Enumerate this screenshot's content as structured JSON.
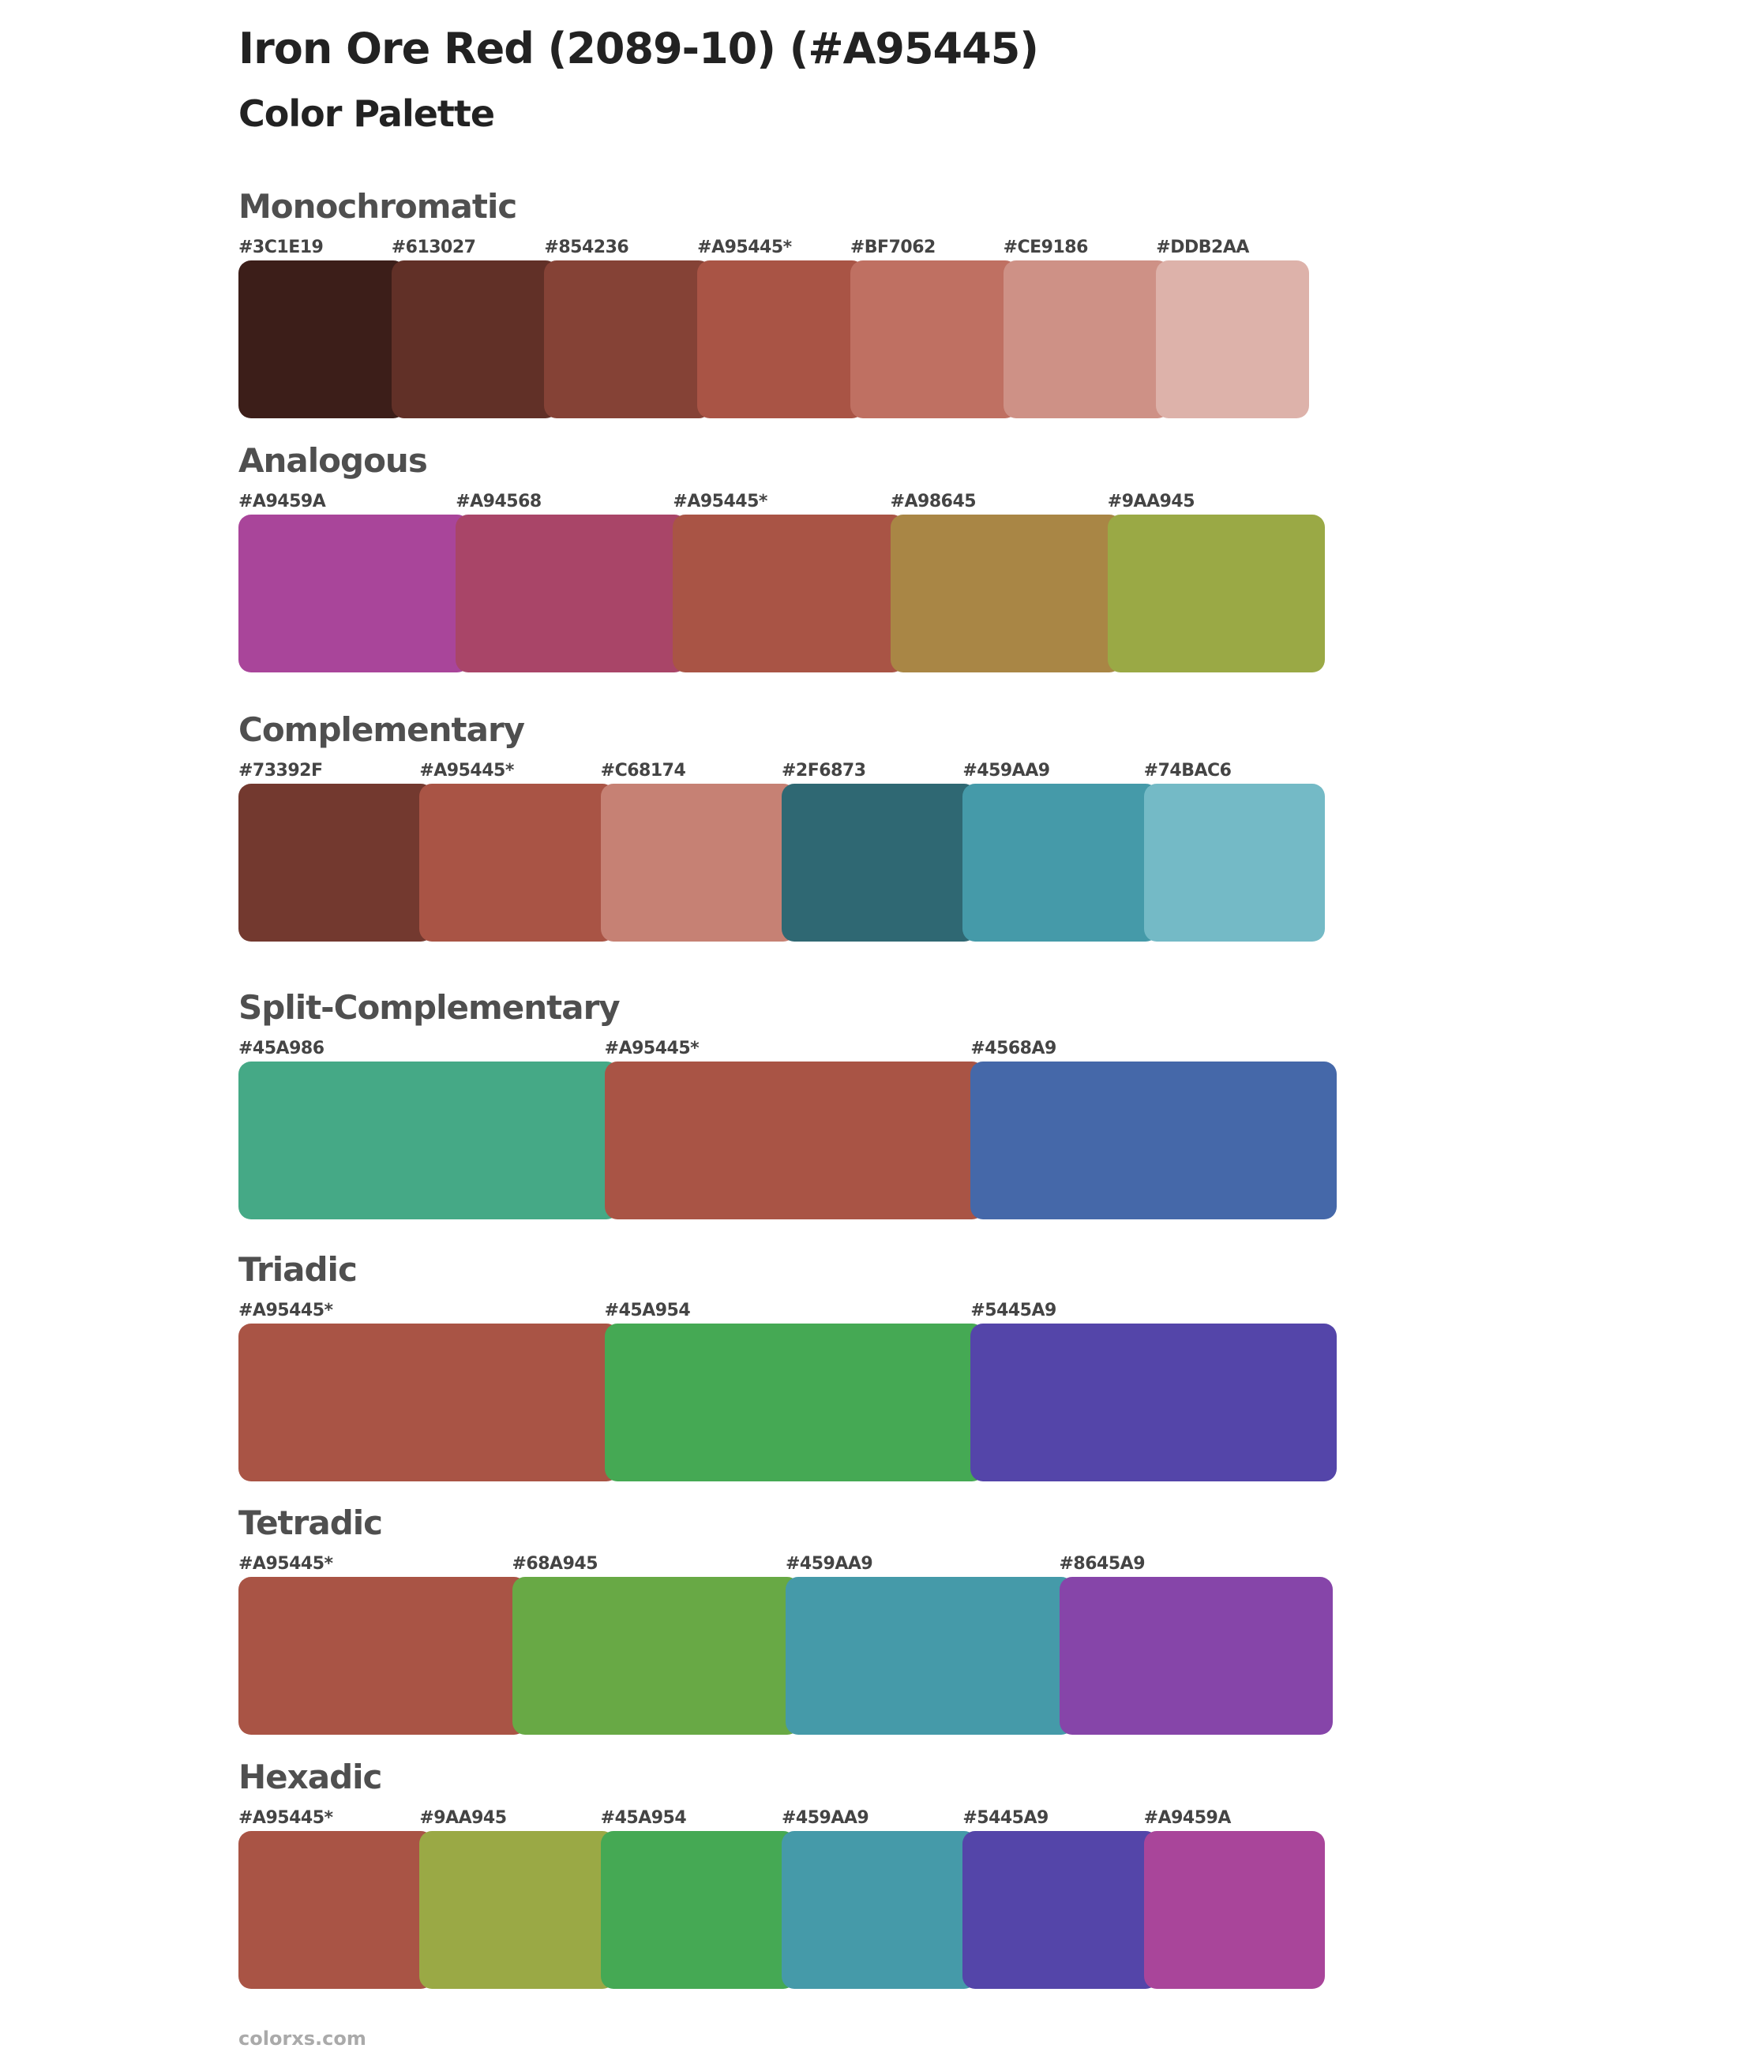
{
  "title": "Iron Ore Red (2089-10) (#A95445)",
  "subtitle": "Color Palette",
  "sections": [
    {
      "name": "Monochromatic",
      "colors": [
        {
          "label": "#3C1E19",
          "hex": "#3C1E19"
        },
        {
          "label": "#613027",
          "hex": "#613027"
        },
        {
          "label": "#854236",
          "hex": "#854236"
        },
        {
          "label": "#A95445*",
          "hex": "#A95445"
        },
        {
          "label": "#BF7062",
          "hex": "#BF7062"
        },
        {
          "label": "#CE9186",
          "hex": "#CE9186"
        },
        {
          "label": "#DDB2AA",
          "hex": "#DDB2AA"
        }
      ]
    },
    {
      "name": "Analogous",
      "colors": [
        {
          "label": "#A9459A",
          "hex": "#A9459A"
        },
        {
          "label": "#A94568",
          "hex": "#A94568"
        },
        {
          "label": "#A95445*",
          "hex": "#A95445"
        },
        {
          "label": "#A98645",
          "hex": "#A98645"
        },
        {
          "label": "#9AA945",
          "hex": "#9AA945"
        }
      ]
    },
    {
      "name": "Complementary",
      "colors": [
        {
          "label": "#73392F",
          "hex": "#73392F"
        },
        {
          "label": "#A95445*",
          "hex": "#A95445"
        },
        {
          "label": "#C68174",
          "hex": "#C68174"
        },
        {
          "label": "#2F6873",
          "hex": "#2F6873"
        },
        {
          "label": "#459AA9",
          "hex": "#459AA9"
        },
        {
          "label": "#74BAC6",
          "hex": "#74BAC6"
        }
      ]
    },
    {
      "name": "Split-Complementary",
      "colors": [
        {
          "label": "#45A986",
          "hex": "#45A986"
        },
        {
          "label": "#A95445*",
          "hex": "#A95445"
        },
        {
          "label": "#4568A9",
          "hex": "#4568A9"
        }
      ]
    },
    {
      "name": "Triadic",
      "colors": [
        {
          "label": "#A95445*",
          "hex": "#A95445"
        },
        {
          "label": "#45A954",
          "hex": "#45A954"
        },
        {
          "label": "#5445A9",
          "hex": "#5445A9"
        }
      ]
    },
    {
      "name": "Tetradic",
      "colors": [
        {
          "label": "#A95445*",
          "hex": "#A95445"
        },
        {
          "label": "#68A945",
          "hex": "#68A945"
        },
        {
          "label": "#459AA9",
          "hex": "#459AA9"
        },
        {
          "label": "#8645A9",
          "hex": "#8645A9"
        }
      ]
    },
    {
      "name": "Hexadic",
      "colors": [
        {
          "label": "#A95445*",
          "hex": "#A95445"
        },
        {
          "label": "#9AA945",
          "hex": "#9AA945"
        },
        {
          "label": "#45A954",
          "hex": "#45A954"
        },
        {
          "label": "#459AA9",
          "hex": "#459AA9"
        },
        {
          "label": "#5445A9",
          "hex": "#5445A9"
        },
        {
          "label": "#A9459A",
          "hex": "#A9459A"
        }
      ]
    }
  ],
  "footer": "colorxs.com"
}
